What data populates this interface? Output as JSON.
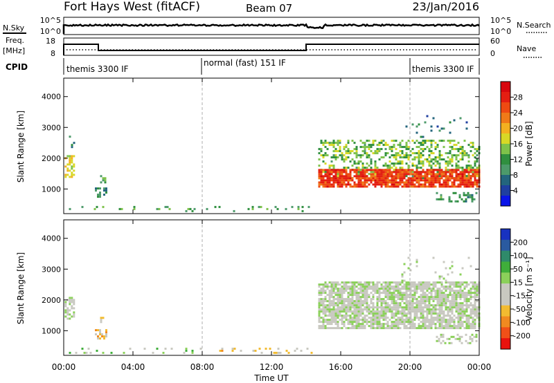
{
  "header": {
    "station": "Fort Hays West (fitACF)",
    "beam": "Beam 07",
    "date": "23/Jan/2016"
  },
  "noise_panel": {
    "left_label": "N.Sky",
    "right_label": "N.Search",
    "left_ticks": [
      "10^5",
      "10^0"
    ],
    "right_ticks": [
      "10^5",
      "10^0"
    ]
  },
  "freq_panel": {
    "left_label_1": "Freq.",
    "left_label_2": "[MHz]",
    "right_label": "Nave",
    "left_ticks": [
      "18",
      "8"
    ],
    "right_ticks": [
      "60",
      "0"
    ]
  },
  "cpid_panel": {
    "label": "CPID",
    "modes": [
      {
        "name": "themis 3300 IF",
        "start_hour": 0,
        "end_hour": 8
      },
      {
        "name": "normal (fast) 151 IF",
        "start_hour": 8,
        "end_hour": 20
      },
      {
        "name": "themis 3300 IF",
        "start_hour": 20,
        "end_hour": 24
      }
    ]
  },
  "power_panel": {
    "ylabel": "Slant Range [km]",
    "cbar_label": "Power [dB]",
    "cbar_ticks": [
      "28",
      "24",
      "20",
      "16",
      "12",
      "8",
      "4"
    ]
  },
  "velocity_panel": {
    "ylabel": "Slant Range [km]",
    "cbar_label": "Velocity [m s⁻¹]",
    "cbar_ticks": [
      "200",
      "100",
      "50",
      "15",
      "-15",
      "-50",
      "-100",
      "-200"
    ]
  },
  "xaxis": {
    "label": "Time UT",
    "ticks": [
      "00:00",
      "04:00",
      "08:00",
      "12:00",
      "16:00",
      "20:00",
      "00:00"
    ]
  },
  "colors": {
    "power_scale": [
      "#0a14e8",
      "#1f3fa0",
      "#23657d",
      "#4c9a6a",
      "#2f8f3f",
      "#7ec24a",
      "#d8d826",
      "#f3b020",
      "#f07a18",
      "#ee4a12",
      "#e41e12",
      "#d8070e"
    ],
    "velocity_scale": [
      "#e8120e",
      "#f05018",
      "#f08a20",
      "#f2bb30",
      "#c8c8c0",
      "#c8c8c0",
      "#8bd05a",
      "#3fae3a",
      "#2f8a6a",
      "#2a5aa0",
      "#1832c0"
    ]
  },
  "chart_data": [
    {
      "type": "heatmap",
      "name": "power",
      "x_unit": "hours UT",
      "xlim": [
        0,
        24
      ],
      "ylim": [
        200,
        4600
      ],
      "yticks": [
        1000,
        2000,
        3000,
        4000
      ],
      "vlim": [
        0,
        32
      ],
      "echo_regions": [
        {
          "t0": 0.05,
          "t1": 0.55,
          "r0": 1400,
          "r1": 2100,
          "value": 18,
          "density": 0.55
        },
        {
          "t0": 0.3,
          "t1": 0.6,
          "r0": 2100,
          "r1": 2800,
          "value": 9,
          "density": 0.15
        },
        {
          "t0": 1.8,
          "t1": 2.5,
          "r0": 750,
          "r1": 1050,
          "value": 10,
          "density": 0.5
        },
        {
          "t0": 2.1,
          "t1": 2.4,
          "r0": 1200,
          "r1": 1450,
          "value": 12,
          "density": 0.4
        },
        {
          "t0": 14.7,
          "t1": 24,
          "r0": 1350,
          "r1": 2600,
          "value": 14,
          "density": 0.42
        },
        {
          "t0": 14.7,
          "t1": 24,
          "r0": 1100,
          "r1": 1650,
          "value": 26,
          "density": 0.85
        },
        {
          "t0": 21.5,
          "t1": 23.8,
          "r0": 600,
          "r1": 900,
          "value": 10,
          "density": 0.35
        },
        {
          "t0": 0.3,
          "t1": 14.5,
          "r0": 250,
          "r1": 450,
          "value": 12,
          "density": 0.09
        },
        {
          "t0": 19.5,
          "t1": 23.5,
          "r0": 2600,
          "r1": 3400,
          "value": 8,
          "density": 0.05
        }
      ]
    },
    {
      "type": "heatmap",
      "name": "velocity",
      "x_unit": "hours UT",
      "xlim": [
        0,
        24
      ],
      "ylim": [
        200,
        4600
      ],
      "yticks": [
        1000,
        2000,
        3000,
        4000
      ],
      "vlim": [
        -250,
        250
      ],
      "echo_regions": [
        {
          "t0": 0.05,
          "t1": 0.55,
          "r0": 1400,
          "r1": 2100,
          "value": 0,
          "density": 0.6
        },
        {
          "t0": 1.8,
          "t1": 2.5,
          "r0": 750,
          "r1": 1050,
          "value": -70,
          "density": 0.6
        },
        {
          "t0": 2.1,
          "t1": 2.4,
          "r0": 1200,
          "r1": 1450,
          "value": -60,
          "density": 0.4
        },
        {
          "t0": 14.7,
          "t1": 24,
          "r0": 1100,
          "r1": 2600,
          "value": 0,
          "density": 0.8
        },
        {
          "t0": 21.5,
          "t1": 23.8,
          "r0": 600,
          "r1": 900,
          "value": 0,
          "density": 0.45
        },
        {
          "t0": 8.5,
          "t1": 14.5,
          "r0": 250,
          "r1": 450,
          "value": -60,
          "density": 0.18
        },
        {
          "t0": 0.3,
          "t1": 8.5,
          "r0": 250,
          "r1": 450,
          "value": 30,
          "density": 0.07
        },
        {
          "t0": 19.5,
          "t1": 23.5,
          "r0": 2600,
          "r1": 3400,
          "value": 0,
          "density": 0.05
        }
      ]
    }
  ]
}
